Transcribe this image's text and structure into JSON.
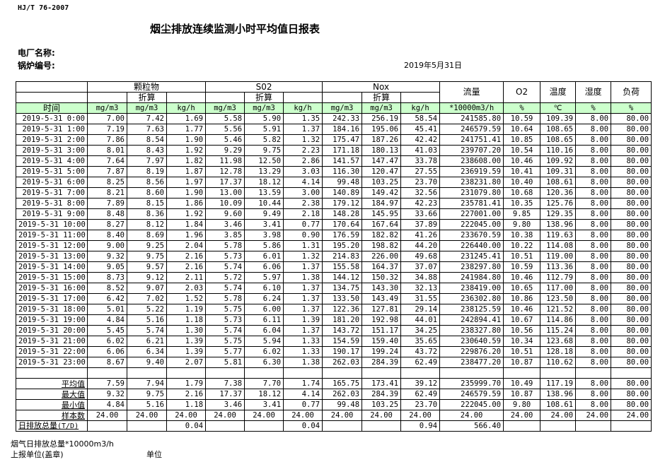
{
  "header": {
    "standard": "HJ/T  76-2007",
    "title": "烟尘排放连续监测小时平均值日报表",
    "plant_label": "电厂名称:",
    "boiler_label": "锅炉编号:",
    "date": "2019年5月31日"
  },
  "table": {
    "groups": {
      "particulate": "颗粒物",
      "so2": "S02",
      "nox": "Nox",
      "flow": "流量",
      "o2": "O2",
      "temp": "温度",
      "humidity": "湿度",
      "load": "负荷",
      "converted": "折算"
    },
    "units": [
      "时间",
      "mg/m3",
      "mg/m3",
      "kg/h",
      "mg/m3",
      "mg/m3",
      "kg/h",
      "mg/m3",
      "mg/m3",
      "kg/h",
      "*10000m3/h",
      "%",
      "℃",
      "%",
      "%"
    ],
    "rows": [
      [
        "2019-5-31 0:00",
        "7.00",
        "7.42",
        "1.69",
        "5.58",
        "5.90",
        "1.35",
        "242.33",
        "256.19",
        "58.54",
        "241585.80",
        "10.59",
        "109.39",
        "8.00",
        "80.00"
      ],
      [
        "2019-5-31 1:00",
        "7.19",
        "7.63",
        "1.77",
        "5.56",
        "5.91",
        "1.37",
        "184.16",
        "195.06",
        "45.41",
        "246579.59",
        "10.64",
        "108.65",
        "8.00",
        "80.00"
      ],
      [
        "2019-5-31 2:00",
        "7.86",
        "8.54",
        "1.90",
        "5.46",
        "5.82",
        "1.32",
        "175.47",
        "187.26",
        "42.42",
        "241751.41",
        "10.85",
        "108.65",
        "8.00",
        "80.00"
      ],
      [
        "2019-5-31 3:00",
        "8.01",
        "8.43",
        "1.92",
        "9.29",
        "9.75",
        "2.23",
        "171.18",
        "180.13",
        "41.03",
        "239707.20",
        "10.54",
        "110.16",
        "8.00",
        "80.00"
      ],
      [
        "2019-5-31 4:00",
        "7.64",
        "7.97",
        "1.82",
        "11.98",
        "12.50",
        "2.86",
        "141.57",
        "147.47",
        "33.78",
        "238608.00",
        "10.46",
        "109.92",
        "8.00",
        "80.00"
      ],
      [
        "2019-5-31 5:00",
        "7.87",
        "8.19",
        "1.87",
        "12.78",
        "13.29",
        "3.03",
        "116.30",
        "120.47",
        "27.55",
        "236919.59",
        "10.41",
        "109.31",
        "8.00",
        "80.00"
      ],
      [
        "2019-5-31 6:00",
        "8.25",
        "8.56",
        "1.97",
        "17.37",
        "18.12",
        "4.14",
        "99.48",
        "103.25",
        "23.70",
        "238231.80",
        "10.40",
        "108.61",
        "8.00",
        "80.00"
      ],
      [
        "2019-5-31 7:00",
        "8.21",
        "8.60",
        "1.90",
        "13.00",
        "13.59",
        "3.00",
        "140.89",
        "149.42",
        "32.56",
        "231079.80",
        "10.68",
        "120.36",
        "8.00",
        "80.00"
      ],
      [
        "2019-5-31 8:00",
        "7.89",
        "8.15",
        "1.86",
        "10.09",
        "10.44",
        "2.38",
        "179.12",
        "184.97",
        "42.23",
        "235781.41",
        "10.35",
        "125.76",
        "8.00",
        "80.00"
      ],
      [
        "2019-5-31 9:00",
        "8.48",
        "8.36",
        "1.92",
        "9.60",
        "9.49",
        "2.18",
        "148.28",
        "145.95",
        "33.66",
        "227001.00",
        "9.85",
        "129.35",
        "8.00",
        "80.00"
      ],
      [
        "2019-5-31 10:00",
        "8.27",
        "8.12",
        "1.84",
        "3.46",
        "3.41",
        "0.77",
        "170.64",
        "167.64",
        "37.89",
        "222045.00",
        "9.80",
        "138.96",
        "8.00",
        "80.00"
      ],
      [
        "2019-5-31 11:00",
        "8.40",
        "8.69",
        "1.96",
        "3.85",
        "3.98",
        "0.90",
        "176.59",
        "182.82",
        "41.26",
        "233670.59",
        "10.38",
        "119.63",
        "8.00",
        "80.00"
      ],
      [
        "2019-5-31 12:00",
        "9.00",
        "9.25",
        "2.04",
        "5.78",
        "5.86",
        "1.31",
        "195.20",
        "198.82",
        "44.20",
        "226440.00",
        "10.22",
        "114.08",
        "8.00",
        "80.00"
      ],
      [
        "2019-5-31 13:00",
        "9.32",
        "9.75",
        "2.16",
        "5.73",
        "6.01",
        "1.32",
        "214.83",
        "226.00",
        "49.68",
        "231245.41",
        "10.51",
        "119.00",
        "8.00",
        "80.00"
      ],
      [
        "2019-5-31 14:00",
        "9.05",
        "9.57",
        "2.16",
        "5.74",
        "6.06",
        "1.37",
        "155.58",
        "164.37",
        "37.07",
        "238297.80",
        "10.59",
        "113.36",
        "8.00",
        "80.00"
      ],
      [
        "2019-5-31 15:00",
        "8.73",
        "9.12",
        "2.11",
        "5.72",
        "5.97",
        "1.38",
        "144.12",
        "150.32",
        "34.88",
        "241984.80",
        "10.46",
        "112.79",
        "8.00",
        "80.00"
      ],
      [
        "2019-5-31 16:00",
        "8.52",
        "9.07",
        "2.03",
        "5.74",
        "6.10",
        "1.37",
        "134.75",
        "143.30",
        "32.13",
        "238419.00",
        "10.65",
        "117.00",
        "8.00",
        "80.00"
      ],
      [
        "2019-5-31 17:00",
        "6.42",
        "7.02",
        "1.52",
        "5.78",
        "6.24",
        "1.37",
        "133.50",
        "143.49",
        "31.55",
        "236302.80",
        "10.86",
        "123.50",
        "8.00",
        "80.00"
      ],
      [
        "2019-5-31 18:00",
        "5.01",
        "5.22",
        "1.19",
        "5.75",
        "6.00",
        "1.37",
        "122.36",
        "127.81",
        "29.14",
        "238125.59",
        "10.46",
        "121.52",
        "8.00",
        "80.00"
      ],
      [
        "2019-5-31 19:00",
        "4.84",
        "5.16",
        "1.18",
        "5.73",
        "6.11",
        "1.39",
        "181.20",
        "192.98",
        "44.01",
        "242894.41",
        "10.67",
        "114.86",
        "8.00",
        "80.00"
      ],
      [
        "2019-5-31 20:00",
        "5.45",
        "5.74",
        "1.30",
        "5.74",
        "6.04",
        "1.37",
        "143.72",
        "151.17",
        "34.25",
        "238327.80",
        "10.56",
        "115.24",
        "8.00",
        "80.00"
      ],
      [
        "2019-5-31 21:00",
        "6.02",
        "6.21",
        "1.39",
        "5.75",
        "5.94",
        "1.33",
        "154.59",
        "159.40",
        "35.65",
        "230640.59",
        "10.34",
        "123.68",
        "8.00",
        "80.00"
      ],
      [
        "2019-5-31 22:00",
        "6.06",
        "6.34",
        "1.39",
        "5.77",
        "6.02",
        "1.33",
        "190.17",
        "199.24",
        "43.72",
        "229876.20",
        "10.51",
        "128.18",
        "8.00",
        "80.00"
      ],
      [
        "2019-5-31 23:00",
        "8.67",
        "9.40",
        "2.07",
        "5.81",
        "6.30",
        "1.38",
        "262.03",
        "284.39",
        "62.49",
        "238477.20",
        "10.87",
        "110.62",
        "8.00",
        "80.00"
      ]
    ],
    "summary": [
      [
        "平均值",
        "7.59",
        "7.94",
        "1.79",
        "7.38",
        "7.70",
        "1.74",
        "165.75",
        "173.41",
        "39.12",
        "235999.70",
        "10.49",
        "117.19",
        "8.00",
        "80.00"
      ],
      [
        "最大值",
        "9.32",
        "9.75",
        "2.16",
        "17.37",
        "18.12",
        "4.14",
        "262.03",
        "284.39",
        "62.49",
        "246579.59",
        "10.87",
        "138.96",
        "8.00",
        "80.00"
      ],
      [
        "最小值",
        "4.84",
        "5.16",
        "1.18",
        "3.46",
        "3.41",
        "0.77",
        "99.48",
        "103.25",
        "23.70",
        "222045.00",
        "9.80",
        "108.61",
        "8.00",
        "80.00"
      ],
      [
        "样本数",
        "24.00",
        "24.00",
        "24.00",
        "24.00",
        "24.00",
        "24.00",
        "24.00",
        "24.00",
        "24.00",
        "24.00",
        "24.00",
        "24.00",
        "24.00",
        "24.00"
      ]
    ],
    "daily_total": {
      "label": "日排放总量",
      "unit": "(T/D)",
      "values": [
        "",
        "",
        "0.04",
        "",
        "",
        "0.04",
        "",
        "",
        "0.94",
        "566.40",
        "",
        "",
        "",
        ""
      ]
    }
  },
  "footer": {
    "flue_gas_total": "烟气日排放总量*10000m3/h",
    "reporting_unit": "上报单位(盖章)",
    "unit": "单位"
  }
}
